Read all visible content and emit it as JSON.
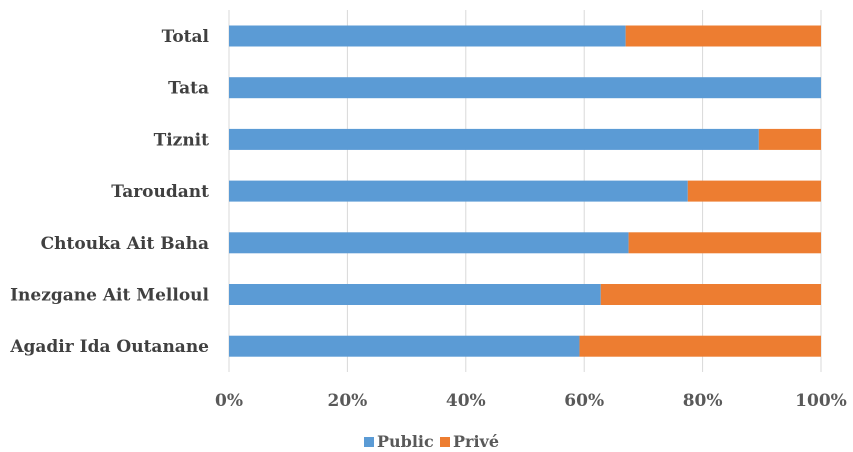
{
  "chart_data": {
    "type": "bar",
    "orientation": "horizontal",
    "stacked": "percent",
    "categories": [
      "Total",
      "Tata",
      "Tiznit",
      "Taroudant",
      "Chtouka Ait Baha",
      "Inezgane Ait Melloul",
      "Agadir Ida Outanane"
    ],
    "series": [
      {
        "name": "Public",
        "color": "#5b9bd5",
        "values": [
          0.67,
          1.0,
          0.895,
          0.775,
          0.675,
          0.628,
          0.592
        ]
      },
      {
        "name": "Privé",
        "color": "#ed7d31",
        "values": [
          0.33,
          0.0,
          0.105,
          0.225,
          0.325,
          0.372,
          0.408
        ]
      }
    ],
    "x_ticks": [
      "0%",
      "20%",
      "40%",
      "60%",
      "80%",
      "100%"
    ],
    "xlim": [
      0,
      1
    ],
    "grid": true,
    "legend": "bottom"
  }
}
